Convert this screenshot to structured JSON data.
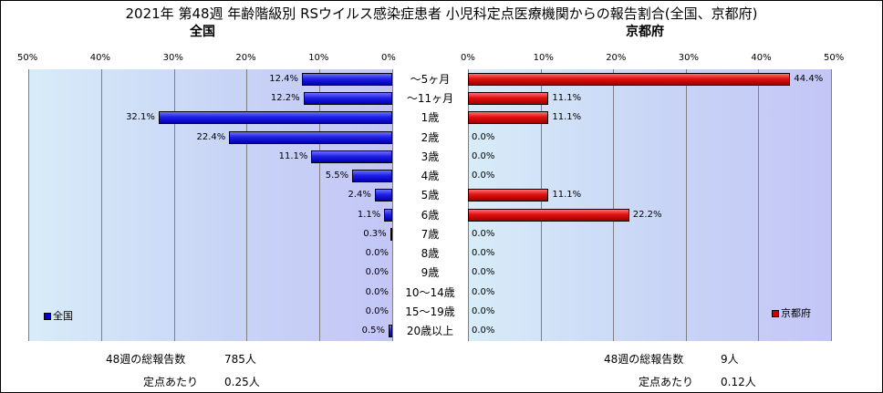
{
  "title": "2021年 第48週 年齢階級別 RSウイルス感染症患者 小児科定点医療機関からの報告割合(全国、京都府)",
  "left_panel": {
    "subtitle": "全国",
    "legend": "全国",
    "footer": {
      "reports_label": "48週の総報告数",
      "reports_value": "785人",
      "per_site_label": "定点あたり",
      "per_site_value": "0.25人"
    }
  },
  "right_panel": {
    "subtitle": "京都府",
    "legend": "京都府",
    "footer": {
      "reports_label": "48週の総報告数",
      "reports_value": "9人",
      "per_site_label": "定点あたり",
      "per_site_value": "0.12人"
    }
  },
  "colors": {
    "national": "#0000cc",
    "kyoto": "#cc0000",
    "plot_bg": "#c8d4f6"
  },
  "chart_data": {
    "type": "bar",
    "orientation": "horizontal",
    "categories": [
      "～5ヶ月",
      "～11ヶ月",
      "1歳",
      "2歳",
      "3歳",
      "4歳",
      "5歳",
      "6歳",
      "7歳",
      "8歳",
      "9歳",
      "10～14歳",
      "15～19歳",
      "20歳以上"
    ],
    "xlim": [
      0,
      50
    ],
    "ticks": [
      "0%",
      "10%",
      "20%",
      "30%",
      "40%",
      "50%"
    ],
    "grid": true,
    "series": [
      {
        "name": "全国",
        "values": [
          12.4,
          12.2,
          32.1,
          22.4,
          11.1,
          5.5,
          2.4,
          1.1,
          0.3,
          0.0,
          0.0,
          0.0,
          0.0,
          0.5
        ],
        "labels": [
          "12.4%",
          "12.2%",
          "32.1%",
          "22.4%",
          "11.1%",
          "5.5%",
          "2.4%",
          "1.1%",
          "0.3%",
          "0.0%",
          "0.0%",
          "0.0%",
          "0.0%",
          "0.5%"
        ]
      },
      {
        "name": "京都府",
        "values": [
          44.4,
          11.1,
          11.1,
          0.0,
          0.0,
          0.0,
          11.1,
          22.2,
          0.0,
          0.0,
          0.0,
          0.0,
          0.0,
          0.0
        ],
        "labels": [
          "44.4%",
          "11.1%",
          "11.1%",
          "0.0%",
          "0.0%",
          "0.0%",
          "11.1%",
          "22.2%",
          "0.0%",
          "0.0%",
          "0.0%",
          "0.0%",
          "0.0%",
          "0.0%"
        ]
      }
    ],
    "legend_position": "bottom-left / bottom-right"
  }
}
